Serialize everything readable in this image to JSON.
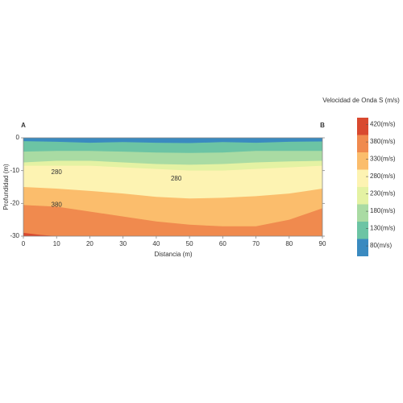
{
  "chart_data": {
    "type": "contour",
    "colorbar_title": "Velocidad de Onda S (m/s)",
    "xlabel": "Distancia (m)",
    "ylabel": "Profundidad (m)",
    "section_start": "A",
    "section_end": "B",
    "xlim": [
      0,
      90
    ],
    "ylim": [
      -30,
      0
    ],
    "xticks": [
      0,
      10,
      20,
      30,
      40,
      50,
      60,
      70,
      80,
      90
    ],
    "yticks": [
      0,
      -10,
      -20,
      -30
    ],
    "levels": [
      {
        "value": 80,
        "label": "80(m/s)"
      },
      {
        "value": 130,
        "label": "130(m/s)"
      },
      {
        "value": 180,
        "label": "180(m/s)"
      },
      {
        "value": 230,
        "label": "230(m/s)"
      },
      {
        "value": 280,
        "label": "280(m/s)"
      },
      {
        "value": 330,
        "label": "330(m/s)"
      },
      {
        "value": 380,
        "label": "380(m/s)"
      },
      {
        "value": 420,
        "label": "420(m/s)"
      }
    ],
    "band_colors": [
      "#3a8ac0",
      "#6cc4a4",
      "#a9dba3",
      "#e4f2a3",
      "#fdf3b2",
      "#fbbd6c",
      "#f08a4e",
      "#d9492f"
    ],
    "boundaries": [
      {
        "x": [
          0,
          10,
          20,
          30,
          40,
          50,
          60,
          70,
          80,
          90
        ],
        "depth": [
          -1,
          -1.2,
          -1.5,
          -1.3,
          -1.5,
          -1.6,
          -1.3,
          -1.5,
          -1.2,
          -1.1
        ]
      },
      {
        "x": [
          0,
          10,
          20,
          30,
          40,
          50,
          60,
          70,
          80,
          90
        ],
        "depth": [
          -4.2,
          -4,
          -4,
          -4.2,
          -4.5,
          -4.6,
          -4.5,
          -4,
          -4,
          -4
        ]
      },
      {
        "x": [
          0,
          10,
          20,
          30,
          40,
          50,
          60,
          70,
          80,
          90
        ],
        "depth": [
          -7.5,
          -7,
          -7,
          -7.5,
          -8,
          -8.2,
          -8,
          -7.5,
          -7.2,
          -7
        ]
      },
      {
        "x": [
          0,
          10,
          20,
          30,
          40,
          50,
          60,
          70,
          80,
          90
        ],
        "depth": [
          -8.5,
          -8.5,
          -8.5,
          -9,
          -9.5,
          -10,
          -10,
          -9.5,
          -9,
          -8.5
        ]
      },
      {
        "x": [
          0,
          10,
          20,
          30,
          40,
          50,
          60,
          70,
          80,
          90
        ],
        "depth": [
          -15,
          -15.5,
          -16.2,
          -17,
          -18,
          -18.5,
          -18.3,
          -17.8,
          -17,
          -15.5
        ]
      },
      {
        "x": [
          0,
          10,
          20,
          30,
          40,
          50,
          60,
          70,
          80,
          90
        ],
        "depth": [
          -20.5,
          -21,
          -22.5,
          -24,
          -25.5,
          -26.5,
          -27,
          -27,
          -25,
          -21.5
        ]
      },
      {
        "x": [
          0,
          5,
          10
        ],
        "depth": [
          -29,
          -29.6,
          -30
        ]
      }
    ],
    "contour_labels": [
      {
        "text": "280",
        "x": 10,
        "y": -10.5
      },
      {
        "text": "280",
        "x": 46,
        "y": -12.5
      },
      {
        "text": "380",
        "x": 10,
        "y": -20.5
      }
    ]
  }
}
